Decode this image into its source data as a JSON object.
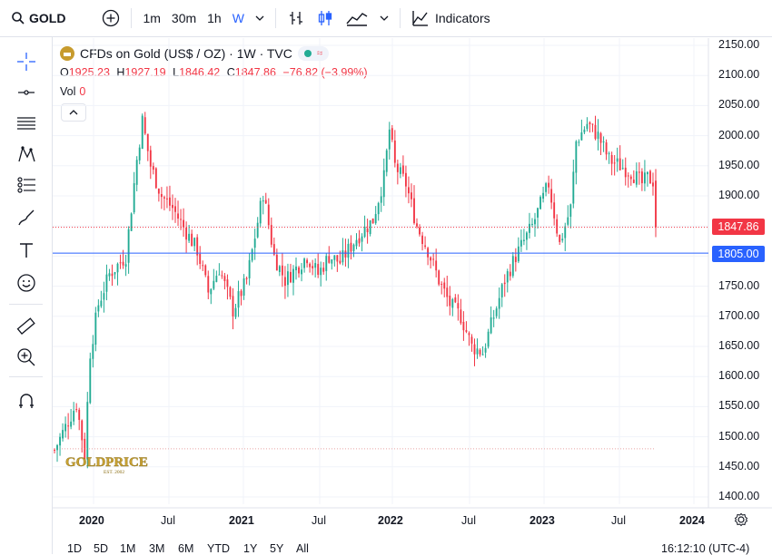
{
  "toolbar": {
    "symbol": "GOLD",
    "intervals": [
      "1m",
      "30m",
      "1h",
      "W"
    ],
    "active_interval": "W",
    "indicators_label": "Indicators"
  },
  "legend": {
    "title": "CFDs on Gold (US$ / OZ) · 1W · TVC",
    "o_label": "O",
    "o": "1925.23",
    "h_label": "H",
    "h": "1927.19",
    "l_label": "L",
    "l": "1846.42",
    "c_label": "C",
    "c": "1847.86",
    "change": "−76.82 (−3.99%)",
    "vol_label": "Vol",
    "vol": "0"
  },
  "price_axis": {
    "ticks": [
      "2150.00",
      "2100.00",
      "2050.00",
      "2000.00",
      "1950.00",
      "1900.00",
      "1850.00",
      "1800.00",
      "1750.00",
      "1700.00",
      "1650.00",
      "1600.00",
      "1550.00",
      "1500.00",
      "1450.00",
      "1400.00"
    ],
    "last_price": "1847.86",
    "line_price": "1805.00"
  },
  "time_axis": {
    "labels": [
      "2020",
      "Jul",
      "2021",
      "Jul",
      "2022",
      "Jul",
      "2023",
      "Jul",
      "2024"
    ]
  },
  "watermark": {
    "text": "GOLDPRICE",
    "sub": "EST. 2002"
  },
  "range_buttons": [
    "1D",
    "5D",
    "1M",
    "3M",
    "6M",
    "YTD",
    "1Y",
    "5Y",
    "All"
  ],
  "clock": "16:12:10 (UTC-4)",
  "colors": {
    "up": "#22ab94",
    "down": "#f23645",
    "line": "#2962ff",
    "accent": "#2962ff"
  },
  "chart_data": {
    "type": "candlestick",
    "title": "CFDs on Gold (US$ / OZ) · 1W · TVC",
    "ylim": [
      1370,
      2170
    ],
    "y_ticks": [
      2150,
      2100,
      2050,
      2000,
      1950,
      1900,
      1850,
      1800,
      1750,
      1700,
      1650,
      1600,
      1550,
      1500,
      1450,
      1400
    ],
    "x_range": [
      "2019-12",
      "2024-02"
    ],
    "x_labels": [
      "2020",
      "Jul",
      "2021",
      "Jul",
      "2022",
      "Jul",
      "2023",
      "Jul",
      "2024"
    ],
    "horizontal_line": 1805,
    "last_price": 1847.86,
    "dotted_line_low": 1480,
    "close_path": [
      [
        0,
        1478
      ],
      [
        8,
        1555
      ],
      [
        11,
        1470
      ],
      [
        13,
        1640
      ],
      [
        16,
        1720
      ],
      [
        20,
        1770
      ],
      [
        26,
        1800
      ],
      [
        30,
        1960
      ],
      [
        32,
        2025
      ],
      [
        35,
        1950
      ],
      [
        39,
        1900
      ],
      [
        43,
        1880
      ],
      [
        48,
        1840
      ],
      [
        52,
        1810
      ],
      [
        56,
        1740
      ],
      [
        60,
        1780
      ],
      [
        65,
        1710
      ],
      [
        70,
        1760
      ],
      [
        76,
        1905
      ],
      [
        80,
        1800
      ],
      [
        84,
        1760
      ],
      [
        88,
        1780
      ],
      [
        92,
        1800
      ],
      [
        96,
        1770
      ],
      [
        100,
        1800
      ],
      [
        104,
        1790
      ],
      [
        110,
        1830
      ],
      [
        116,
        1860
      ],
      [
        120,
        1930
      ],
      [
        122,
        2010
      ],
      [
        124,
        1950
      ],
      [
        128,
        1920
      ],
      [
        132,
        1850
      ],
      [
        136,
        1810
      ],
      [
        140,
        1760
      ],
      [
        144,
        1720
      ],
      [
        148,
        1700
      ],
      [
        152,
        1650
      ],
      [
        156,
        1640
      ],
      [
        160,
        1700
      ],
      [
        164,
        1760
      ],
      [
        168,
        1800
      ],
      [
        174,
        1850
      ],
      [
        180,
        1920
      ],
      [
        184,
        1820
      ],
      [
        188,
        1880
      ],
      [
        190,
        1990
      ],
      [
        194,
        2020
      ],
      [
        198,
        2000
      ],
      [
        202,
        1960
      ],
      [
        206,
        1950
      ],
      [
        210,
        1940
      ],
      [
        214,
        1920
      ],
      [
        216,
        1930
      ],
      [
        218,
        1925
      ],
      [
        219,
        1848
      ]
    ],
    "total_weeks": 220
  }
}
